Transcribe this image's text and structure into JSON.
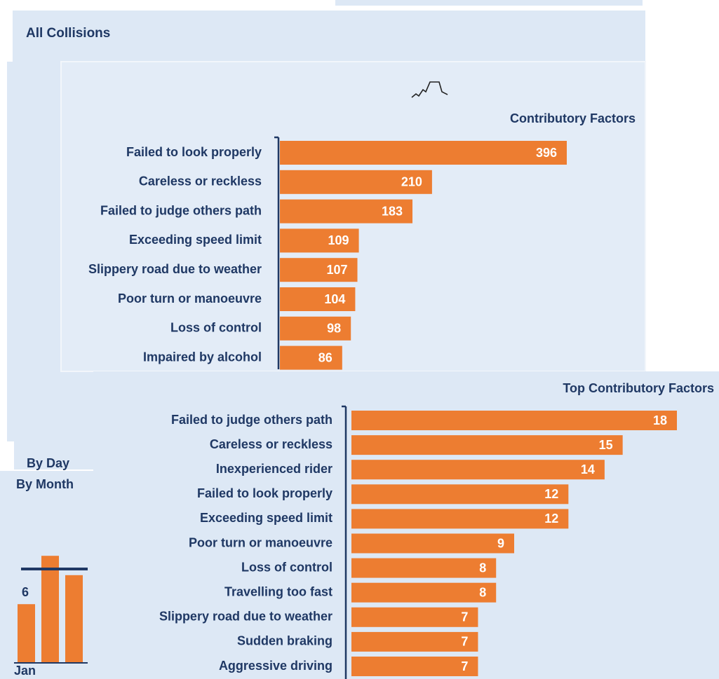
{
  "header": {
    "title": "All Collisions"
  },
  "by_day": {
    "title": "By Day"
  },
  "chart_data": [
    {
      "type": "hbar",
      "title": "Contributory Factors",
      "color": "#ed7d31",
      "categories": [
        "Failed to look properly",
        "Careless or reckless",
        "Failed to judge others path",
        "Exceeding speed limit",
        "Slippery road due to weather",
        "Poor turn or manoeuvre",
        "Loss of control",
        "Impaired by alcohol"
      ],
      "values": [
        396,
        210,
        183,
        109,
        107,
        104,
        98,
        86
      ]
    },
    {
      "type": "hbar",
      "title": "Top Contributory Factors",
      "color": "#ed7d31",
      "categories": [
        "Failed to judge others path",
        "Careless or reckless",
        "Inexperienced rider",
        "Failed to look properly",
        "Exceeding speed limit",
        "Poor turn or manoeuvre",
        "Loss of control",
        "Travelling too fast",
        "Slippery road due to weather",
        "Sudden braking",
        "Aggressive driving"
      ],
      "values": [
        18,
        15,
        14,
        12,
        12,
        9,
        8,
        8,
        7,
        7,
        7
      ]
    },
    {
      "type": "bar",
      "title": "By Month",
      "color": "#ed7d31",
      "categories": [
        "Jan",
        null,
        null
      ],
      "values": [
        6,
        11,
        9
      ],
      "value_labels": [
        "6",
        null,
        null
      ]
    }
  ]
}
